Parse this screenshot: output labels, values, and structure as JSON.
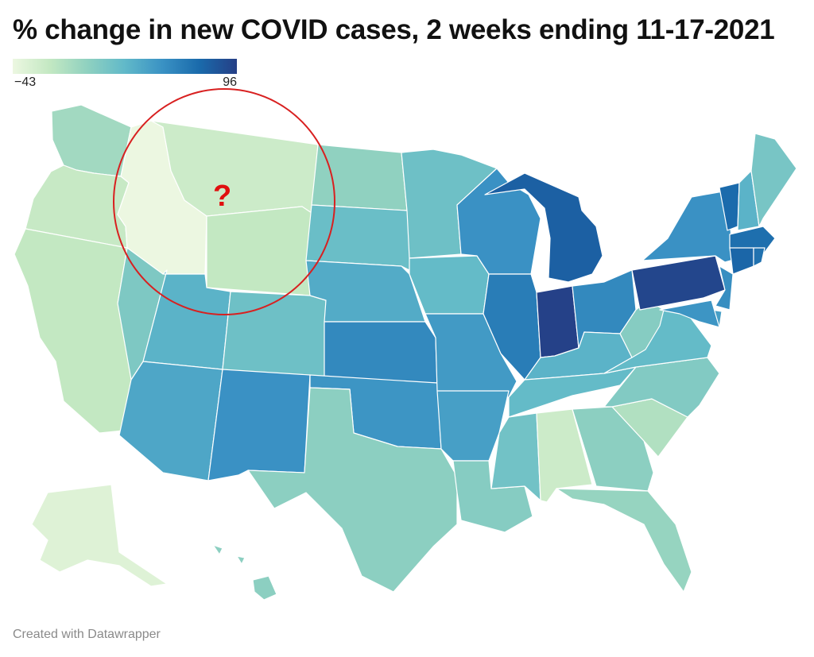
{
  "title": "% change in new COVID cases, 2 weeks ending 11-17-2021",
  "legend": {
    "min_label": "−43",
    "max_label": "96",
    "min": -43,
    "max": 96,
    "color_stops": [
      "#ecf7e1",
      "#c3e8c2",
      "#8fd1c0",
      "#61b9c9",
      "#3a92c4",
      "#1a6aab",
      "#253f86"
    ]
  },
  "annotation": {
    "marker": "?",
    "color": "#d82020",
    "highlighted_states": [
      "Idaho",
      "Montana",
      "Wyoming"
    ]
  },
  "credit": "Created with Datawrapper",
  "chart_data": {
    "type": "choropleth",
    "title": "% change in new COVID cases, 2 weeks ending 11-17-2021",
    "scale": [
      -43,
      96
    ],
    "states": [
      {
        "name": "Washington",
        "value": -5
      },
      {
        "name": "Oregon",
        "value": -22
      },
      {
        "name": "California",
        "value": -20
      },
      {
        "name": "Idaho",
        "value": -43
      },
      {
        "name": "Nevada",
        "value": 12
      },
      {
        "name": "Montana",
        "value": -25
      },
      {
        "name": "Wyoming",
        "value": -20
      },
      {
        "name": "Utah",
        "value": 30
      },
      {
        "name": "Arizona",
        "value": 38
      },
      {
        "name": "Colorado",
        "value": 20
      },
      {
        "name": "New Mexico",
        "value": 50
      },
      {
        "name": "North Dakota",
        "value": 3
      },
      {
        "name": "South Dakota",
        "value": 22
      },
      {
        "name": "Nebraska",
        "value": 35
      },
      {
        "name": "Kansas",
        "value": 55
      },
      {
        "name": "Oklahoma",
        "value": 48
      },
      {
        "name": "Texas",
        "value": 5
      },
      {
        "name": "Minnesota",
        "value": 20
      },
      {
        "name": "Iowa",
        "value": 25
      },
      {
        "name": "Missouri",
        "value": 45
      },
      {
        "name": "Arkansas",
        "value": 42
      },
      {
        "name": "Louisiana",
        "value": 8
      },
      {
        "name": "Wisconsin",
        "value": 50
      },
      {
        "name": "Illinois",
        "value": 62
      },
      {
        "name": "Michigan",
        "value": 78
      },
      {
        "name": "Indiana",
        "value": 95
      },
      {
        "name": "Ohio",
        "value": 55
      },
      {
        "name": "Kentucky",
        "value": 30
      },
      {
        "name": "Tennessee",
        "value": 25
      },
      {
        "name": "Mississippi",
        "value": 18
      },
      {
        "name": "Alabama",
        "value": -25
      },
      {
        "name": "Georgia",
        "value": 5
      },
      {
        "name": "Florida",
        "value": 0
      },
      {
        "name": "South Carolina",
        "value": -12
      },
      {
        "name": "North Carolina",
        "value": 10
      },
      {
        "name": "Virginia",
        "value": 25
      },
      {
        "name": "West Virginia",
        "value": 8
      },
      {
        "name": "Pennsylvania",
        "value": 92
      },
      {
        "name": "New York",
        "value": 50
      },
      {
        "name": "Vermont",
        "value": 72
      },
      {
        "name": "New Hampshire",
        "value": 30
      },
      {
        "name": "Maine",
        "value": 15
      },
      {
        "name": "Massachusetts",
        "value": 70
      },
      {
        "name": "Connecticut",
        "value": 75
      },
      {
        "name": "Rhode Island",
        "value": 68
      },
      {
        "name": "New Jersey",
        "value": 52
      },
      {
        "name": "Delaware",
        "value": 42
      },
      {
        "name": "Maryland",
        "value": 48
      },
      {
        "name": "Alaska",
        "value": -35
      },
      {
        "name": "Hawaii",
        "value": 5
      }
    ]
  }
}
